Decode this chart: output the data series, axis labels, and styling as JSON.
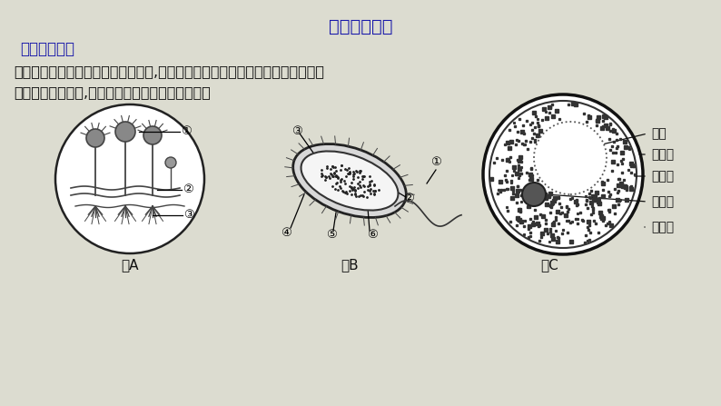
{
  "title": "《技法突破》",
  "subtitle": "《典例引领》",
  "body_text_line1": "某同学对细菌、真菌的学习颋感兴趣,课后结合自己观察到的几种细菌和真菌绘制",
  "body_text_line2": "出三幅结构模式图,请你仔细观察并回答下列问题。",
  "fig_a_label": "图A",
  "fig_b_label": "图B",
  "fig_c_label": "图C",
  "fig_c_annotations": [
    "细胞壁",
    "细胞核",
    "细胞质",
    "细胞膜",
    "液泡"
  ],
  "bg_color": "#dcdcd0",
  "title_color": "#1a1aaa",
  "subtitle_color": "#1a1aaa",
  "text_color": "#111111",
  "line_color": "#333333"
}
